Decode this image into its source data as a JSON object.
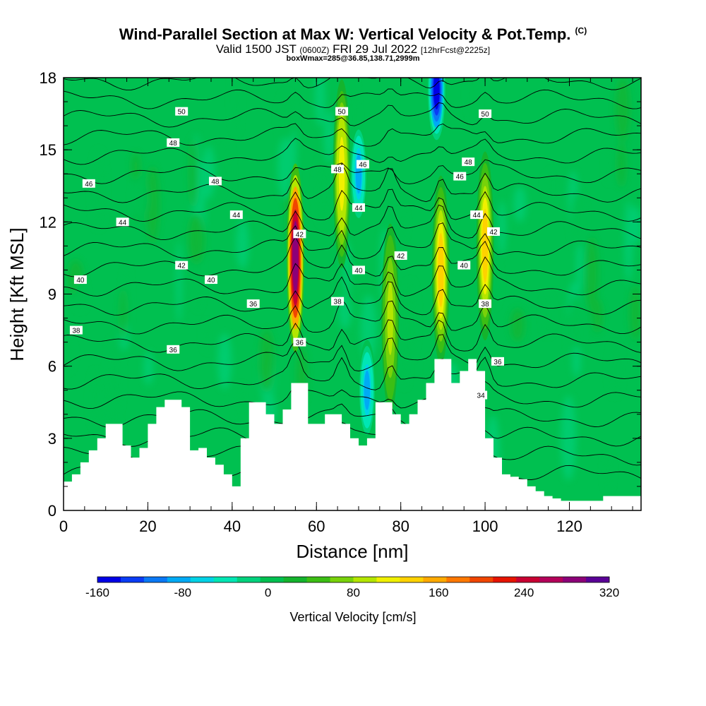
{
  "chart_data": {
    "type": "heatmap",
    "title": "Wind-Parallel Section at Max W: Vertical Velocity & Pot.Temp.",
    "title_mark": "(C)",
    "subtitle_main": "Valid 1500 JST",
    "subtitle_utc": "(0600Z)",
    "subtitle_date": "FRI 29 Jul 2022",
    "subtitle_fcst": "[12hrFcst@2225z]",
    "subsubtitle": "boxWmax=285@36.85,138.71,2999m",
    "xlabel": "Distance [nm]",
    "ylabel": "Height [Kft MSL]",
    "xlim": [
      0,
      137
    ],
    "ylim": [
      0,
      18
    ],
    "x_ticks": [
      "0",
      "20",
      "40",
      "60",
      "80",
      "100",
      "120"
    ],
    "y_ticks": [
      "0",
      "3",
      "6",
      "9",
      "12",
      "15",
      "18"
    ],
    "colorbar": {
      "label": "Vertical Velocity [cm/s]",
      "ticks": [
        "-160",
        "-80",
        "0",
        "80",
        "160",
        "240",
        "320"
      ],
      "range": [
        -160,
        320
      ],
      "colors": [
        "#0000e6",
        "#0a3cf5",
        "#0a78f5",
        "#00aaf5",
        "#00d2e6",
        "#00e6b4",
        "#00d27d",
        "#00c050",
        "#14b42d",
        "#3cbe14",
        "#78d20a",
        "#b4e600",
        "#f0f000",
        "#ffd200",
        "#ffaa00",
        "#ff7800",
        "#f04600",
        "#e61400",
        "#c80032",
        "#b4005a",
        "#8c0078",
        "#5a0096"
      ]
    },
    "theta_labels": [
      "34",
      "36",
      "38",
      "40",
      "42",
      "44",
      "46",
      "48",
      "50"
    ],
    "terrain": {
      "x": [
        0,
        2,
        4,
        6,
        8,
        10,
        12,
        14,
        16,
        18,
        20,
        22,
        24,
        26,
        28,
        30,
        32,
        34,
        36,
        38,
        40,
        42,
        44,
        46,
        48,
        50,
        52,
        54,
        56,
        58,
        60,
        62,
        64,
        66,
        68,
        70,
        72,
        74,
        76,
        78,
        80,
        82,
        84,
        86,
        88,
        90,
        92,
        94,
        96,
        98,
        100,
        102,
        104,
        106,
        108,
        110,
        112,
        114,
        116,
        118,
        120,
        122,
        124,
        126,
        128,
        130,
        132,
        134,
        136,
        137
      ],
      "height": [
        1.2,
        1.5,
        2.0,
        2.5,
        3.0,
        3.6,
        3.6,
        2.7,
        2.2,
        2.6,
        3.6,
        4.3,
        4.6,
        4.6,
        4.3,
        2.5,
        2.6,
        2.2,
        1.9,
        1.5,
        1.0,
        3.0,
        4.5,
        4.5,
        4.0,
        3.6,
        4.2,
        5.3,
        5.3,
        3.6,
        3.6,
        4.0,
        4.0,
        3.6,
        3.0,
        2.7,
        3.0,
        4.5,
        4.5,
        4.0,
        3.6,
        4.0,
        4.6,
        5.3,
        6.3,
        6.3,
        5.3,
        5.8,
        6.3,
        5.8,
        3.0,
        2.2,
        1.5,
        1.4,
        1.3,
        1.0,
        0.8,
        0.6,
        0.5,
        0.4,
        0.4,
        0.4,
        0.4,
        0.4,
        0.6,
        0.6,
        0.6,
        0.6,
        0.6,
        0.6
      ]
    },
    "velocity_cores": [
      {
        "x": 55,
        "y": 10.5,
        "peak": 285
      },
      {
        "x": 66,
        "y": 14,
        "peak": 120
      },
      {
        "x": 77.5,
        "y": 8,
        "peak": 90
      },
      {
        "x": 89.5,
        "y": 10,
        "peak": 140
      },
      {
        "x": 100,
        "y": 11,
        "peak": 140
      },
      {
        "x": 88.5,
        "y": 17.5,
        "peak": -160
      },
      {
        "x": 70,
        "y": 14,
        "peak": -80
      },
      {
        "x": 72,
        "y": 5,
        "peak": -80
      }
    ]
  }
}
